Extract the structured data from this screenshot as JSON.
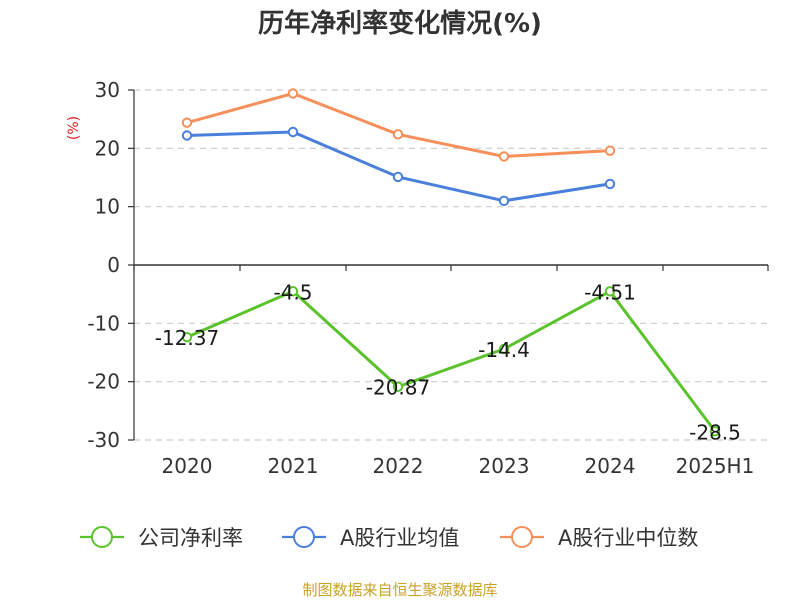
{
  "title": "历年净利率变化情况(%)",
  "unit": "(%)",
  "source": "制图数据来自恒生聚源数据库",
  "colors": {
    "company": "#5ac22b",
    "avg": "#4a7fdc",
    "median": "#f5905a",
    "grid": "#cccccc",
    "axis": "#333333"
  },
  "chart_data": {
    "type": "line",
    "title": "历年净利率变化情况(%)",
    "ylabel": "(%)",
    "ylim": [
      -30,
      30
    ],
    "yticks": [
      30,
      20,
      10,
      0,
      -10,
      -20,
      -30
    ],
    "grid": "horizontal dashed",
    "legend_position": "bottom",
    "categories": [
      "2020",
      "2021",
      "2022",
      "2023",
      "2024",
      "2025H1"
    ],
    "series": [
      {
        "name": "公司净利率",
        "color": "#5ac22b",
        "values": [
          -12.37,
          -4.5,
          -20.87,
          -14.4,
          -4.51,
          -28.5
        ],
        "labels": [
          "-12.37",
          "-4.5",
          "-20.87",
          "-14.4",
          "-4.51",
          "-28.5"
        ]
      },
      {
        "name": "A股行业均值",
        "color": "#4a7fdc",
        "values": [
          22.2,
          22.8,
          15.1,
          11.0,
          13.9,
          null
        ]
      },
      {
        "name": "A股行业中位数",
        "color": "#f5905a",
        "values": [
          24.4,
          29.4,
          22.4,
          18.6,
          19.6,
          null
        ]
      }
    ]
  }
}
